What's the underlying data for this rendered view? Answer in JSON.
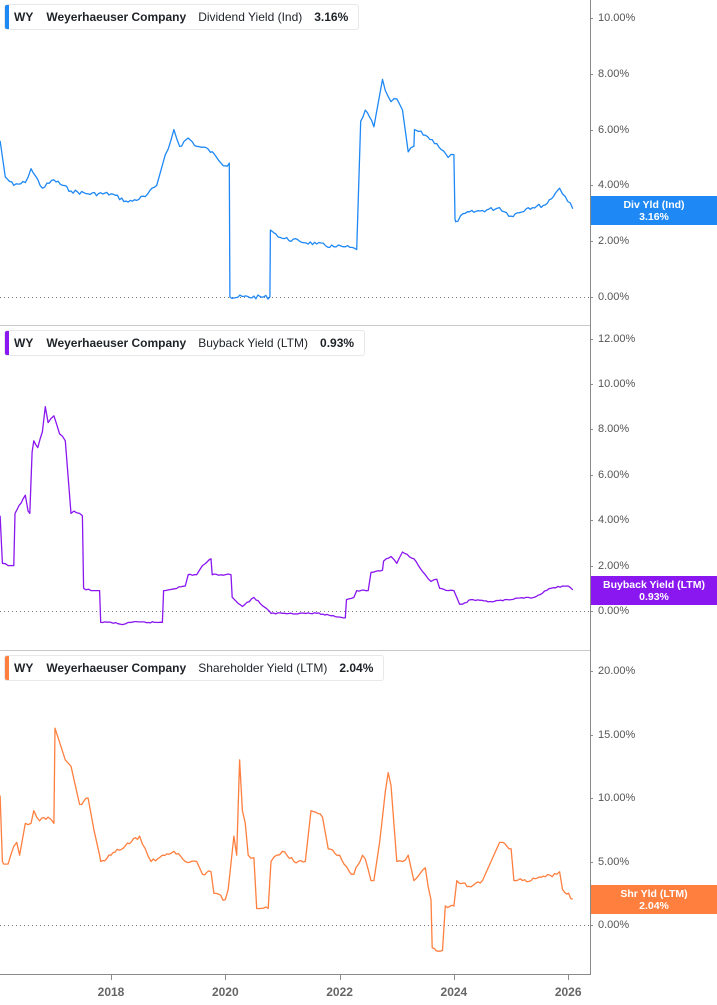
{
  "chart_data": [
    {
      "type": "line",
      "title": "WY Weyerhaeuser Company Dividend Yield (Ind) 3.16%",
      "ticker": "WY",
      "company": "Weyerhaeuser Company",
      "metric": "Dividend Yield (Ind)",
      "latest_value": "3.16%",
      "color": "#1e88f5",
      "tag_label": "Div Yld (Ind)",
      "tag_value": "3.16%",
      "ylabel": "",
      "ylim": [
        0,
        10.5
      ],
      "y_ticks": [
        "10.00%",
        "8.00%",
        "6.00%",
        "4.00%",
        "2.00%",
        "0.00%"
      ],
      "x": [
        2016.06,
        2016.15,
        2016.3,
        2016.5,
        2016.6,
        2016.8,
        2017.0,
        2017.3,
        2017.6,
        2018.0,
        2018.3,
        2018.6,
        2018.8,
        2018.95,
        2019.0,
        2019.1,
        2019.2,
        2019.35,
        2019.5,
        2019.7,
        2019.85,
        2020.0,
        2020.07,
        2020.08,
        2020.78,
        2020.79,
        2020.85,
        2021.0,
        2021.3,
        2021.6,
        2021.9,
        2022.1,
        2022.3,
        2022.37,
        2022.45,
        2022.6,
        2022.75,
        2022.8,
        2022.9,
        2023.0,
        2023.1,
        2023.2,
        2023.3,
        2023.31,
        2023.5,
        2023.7,
        2023.9,
        2024.0,
        2024.02,
        2024.03,
        2024.2,
        2024.5,
        2024.8,
        2025.0,
        2025.3,
        2025.6,
        2025.85,
        2025.95,
        2026.08
      ],
      "values": [
        5.6,
        4.3,
        4.0,
        4.1,
        4.6,
        3.9,
        4.2,
        3.8,
        3.7,
        3.7,
        3.4,
        3.6,
        4.0,
        5.1,
        5.3,
        6.0,
        5.4,
        5.7,
        5.4,
        5.3,
        5.0,
        4.7,
        4.8,
        0.0,
        0.0,
        2.4,
        2.3,
        2.1,
        2.0,
        1.9,
        1.8,
        1.8,
        1.7,
        6.3,
        6.7,
        6.1,
        7.8,
        7.4,
        7.0,
        7.1,
        6.7,
        5.2,
        5.4,
        6.0,
        5.8,
        5.5,
        5.0,
        5.1,
        2.8,
        2.7,
        3.0,
        3.1,
        3.2,
        2.9,
        3.2,
        3.3,
        3.9,
        3.6,
        3.16
      ]
    },
    {
      "type": "line",
      "title": "WY Weyerhaeuser Company Buyback Yield (LTM) 0.93%",
      "ticker": "WY",
      "company": "Weyerhaeuser Company",
      "metric": "Buyback Yield (LTM)",
      "latest_value": "0.93%",
      "color": "#8a16f0",
      "tag_label": "Buyback Yield (LTM)",
      "tag_value": "0.93%",
      "ylabel": "",
      "ylim": [
        -0.7,
        12.5
      ],
      "y_ticks": [
        "12.00%",
        "10.00%",
        "8.00%",
        "6.00%",
        "4.00%",
        "2.00%",
        "0.00%"
      ],
      "x": [
        2016.06,
        2016.1,
        2016.2,
        2016.3,
        2016.32,
        2016.5,
        2016.55,
        2016.58,
        2016.62,
        2016.65,
        2016.72,
        2016.8,
        2016.85,
        2016.9,
        2017.0,
        2017.1,
        2017.15,
        2017.2,
        2017.3,
        2017.35,
        2017.45,
        2017.5,
        2017.52,
        2017.65,
        2017.7,
        2017.8,
        2017.82,
        2018.0,
        2018.2,
        2018.3,
        2018.9,
        2018.92,
        2019.3,
        2019.35,
        2019.5,
        2019.6,
        2019.75,
        2019.77,
        2020.0,
        2020.1,
        2020.12,
        2020.3,
        2020.5,
        2020.8,
        2021.0,
        2021.3,
        2021.6,
        2022.1,
        2022.12,
        2022.25,
        2022.3,
        2022.5,
        2022.55,
        2022.75,
        2022.77,
        2022.9,
        2023.0,
        2023.1,
        2023.3,
        2023.5,
        2023.6,
        2023.7,
        2023.75,
        2023.9,
        2024.0,
        2024.1,
        2024.15,
        2024.3,
        2024.6,
        2025.0,
        2025.3,
        2025.4,
        2025.7,
        2025.9,
        2026.0,
        2026.08
      ],
      "values": [
        4.2,
        2.1,
        2.0,
        2.0,
        4.3,
        5.1,
        4.4,
        4.3,
        7.0,
        7.5,
        7.2,
        7.9,
        9.0,
        8.3,
        8.6,
        7.8,
        7.7,
        7.5,
        4.3,
        4.4,
        4.3,
        4.2,
        1.0,
        0.9,
        0.9,
        0.9,
        -0.5,
        -0.5,
        -0.6,
        -0.5,
        -0.5,
        0.9,
        1.1,
        1.6,
        1.6,
        2.0,
        2.3,
        1.6,
        1.6,
        1.6,
        0.6,
        0.2,
        0.6,
        -0.1,
        -0.1,
        -0.1,
        -0.1,
        -0.3,
        0.5,
        0.6,
        0.9,
        0.9,
        1.7,
        1.8,
        2.2,
        2.4,
        2.1,
        2.6,
        2.3,
        1.6,
        1.3,
        1.4,
        1.0,
        0.9,
        0.9,
        0.3,
        0.3,
        0.5,
        0.4,
        0.5,
        0.6,
        0.6,
        1.0,
        1.1,
        1.1,
        0.93
      ]
    },
    {
      "type": "line",
      "title": "WY Weyerhaeuser Company Shareholder Yield (LTM) 2.04%",
      "ticker": "WY",
      "company": "Weyerhaeuser Company",
      "metric": "Shareholder Yield (LTM)",
      "latest_value": "2.04%",
      "color": "#ff7f3f",
      "tag_label": "Shr Yld (LTM)",
      "tag_value": "2.04%",
      "ylabel": "",
      "ylim": [
        -4,
        21
      ],
      "y_ticks": [
        "20.00%",
        "15.00%",
        "10.00%",
        "5.00%",
        "0.00%"
      ],
      "x": [
        2016.06,
        2016.1,
        2016.12,
        2016.2,
        2016.3,
        2016.35,
        2016.4,
        2016.5,
        2016.6,
        2016.65,
        2016.75,
        2016.9,
        2017.0,
        2017.02,
        2017.2,
        2017.3,
        2017.45,
        2017.6,
        2017.7,
        2017.8,
        2017.82,
        2018.0,
        2018.5,
        2018.6,
        2018.7,
        2018.9,
        2019.1,
        2019.3,
        2019.5,
        2019.6,
        2019.75,
        2019.8,
        2020.0,
        2020.05,
        2020.15,
        2020.2,
        2020.25,
        2020.3,
        2020.35,
        2020.4,
        2020.5,
        2020.55,
        2020.75,
        2020.8,
        2020.9,
        2021.0,
        2021.2,
        2021.4,
        2021.5,
        2021.7,
        2021.8,
        2022.0,
        2022.2,
        2022.25,
        2022.4,
        2022.45,
        2022.55,
        2022.6,
        2022.7,
        2022.75,
        2022.8,
        2022.85,
        2022.9,
        2023.0,
        2023.1,
        2023.2,
        2023.3,
        2023.4,
        2023.5,
        2023.55,
        2023.6,
        2023.62,
        2023.8,
        2023.85,
        2024.0,
        2024.05,
        2024.3,
        2024.5,
        2024.55,
        2024.8,
        2024.85,
        2025.0,
        2025.05,
        2025.2,
        2025.35,
        2025.6,
        2025.8,
        2025.85,
        2025.9,
        2026.08
      ],
      "values": [
        10.2,
        5.0,
        4.8,
        4.8,
        6.2,
        6.5,
        5.5,
        8.0,
        8.0,
        9.0,
        8.2,
        8.5,
        8.0,
        15.5,
        13.0,
        12.5,
        9.5,
        10.0,
        7.5,
        5.5,
        5.0,
        5.5,
        7.0,
        6.0,
        5.0,
        5.5,
        5.8,
        5.0,
        5.0,
        4.0,
        4.2,
        2.5,
        2.0,
        2.8,
        7.0,
        5.5,
        13.0,
        9.0,
        8.0,
        5.5,
        5.3,
        1.3,
        1.3,
        5.0,
        5.5,
        5.8,
        5.0,
        5.0,
        9.0,
        8.5,
        6.0,
        5.5,
        4.0,
        4.0,
        5.5,
        5.2,
        3.5,
        3.5,
        6.5,
        8.5,
        10.5,
        12.0,
        11.0,
        5.0,
        5.0,
        5.5,
        3.5,
        4.0,
        4.5,
        3.0,
        2.0,
        -1.8,
        -2.0,
        1.5,
        1.5,
        3.5,
        3.0,
        3.5,
        4.0,
        6.5,
        6.5,
        6.0,
        3.5,
        3.5,
        3.5,
        3.8,
        4.0,
        4.2,
        2.8,
        2.04
      ]
    }
  ],
  "x_axis": {
    "ticks": [
      "2018",
      "2020",
      "2022",
      "2024",
      "2026"
    ]
  }
}
